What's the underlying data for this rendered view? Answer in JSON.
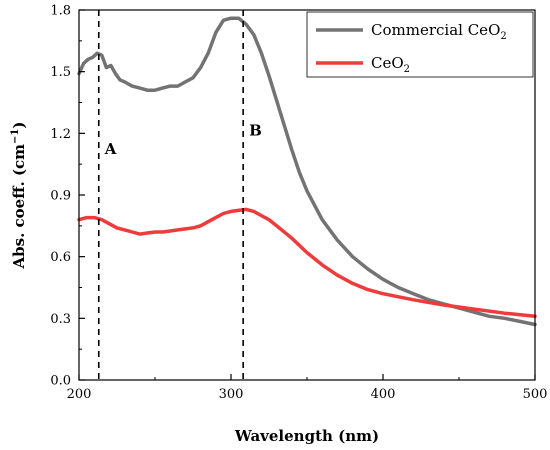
{
  "chart_data": {
    "type": "line",
    "xlabel": "Wavelength (nm)",
    "ylabel_main": "Abs. coeff. (cm",
    "ylabel_sup": "−1",
    "ylabel_close": ")",
    "xlim": [
      200,
      500
    ],
    "ylim": [
      0,
      1.8
    ],
    "x_ticks": [
      "200",
      "300",
      "400",
      "500"
    ],
    "y_ticks": [
      "0.0",
      "0.3",
      "0.6",
      "0.9",
      "1.2",
      "1.5",
      "1.8"
    ],
    "grid": false,
    "legend_position": "top-right",
    "series": [
      {
        "name": "Commercial CeO",
        "name_sub": "2",
        "color": "#737373",
        "x": [
          200,
          203,
          206,
          209,
          212,
          215,
          218,
          221,
          224,
          227,
          230,
          235,
          240,
          245,
          250,
          255,
          260,
          265,
          270,
          275,
          280,
          285,
          290,
          295,
          300,
          305,
          310,
          315,
          320,
          325,
          330,
          335,
          340,
          345,
          350,
          360,
          370,
          380,
          390,
          400,
          410,
          420,
          430,
          440,
          450,
          460,
          470,
          480,
          490,
          500
        ],
        "y": [
          1.49,
          1.54,
          1.56,
          1.57,
          1.59,
          1.58,
          1.52,
          1.53,
          1.49,
          1.46,
          1.45,
          1.43,
          1.42,
          1.41,
          1.41,
          1.42,
          1.43,
          1.43,
          1.45,
          1.47,
          1.52,
          1.59,
          1.69,
          1.75,
          1.76,
          1.76,
          1.73,
          1.68,
          1.59,
          1.48,
          1.36,
          1.24,
          1.12,
          1.01,
          0.92,
          0.78,
          0.68,
          0.6,
          0.54,
          0.49,
          0.45,
          0.42,
          0.39,
          0.37,
          0.35,
          0.33,
          0.31,
          0.3,
          0.285,
          0.27
        ]
      },
      {
        "name": "CeO",
        "name_sub": "2",
        "color": "#ee3b3b",
        "x": [
          200,
          205,
          210,
          215,
          220,
          225,
          230,
          235,
          240,
          245,
          250,
          255,
          260,
          265,
          270,
          275,
          280,
          285,
          290,
          295,
          300,
          305,
          310,
          315,
          320,
          325,
          330,
          340,
          350,
          360,
          370,
          380,
          390,
          400,
          420,
          440,
          460,
          480,
          500
        ],
        "y": [
          0.78,
          0.79,
          0.79,
          0.78,
          0.76,
          0.74,
          0.73,
          0.72,
          0.71,
          0.715,
          0.72,
          0.72,
          0.725,
          0.73,
          0.735,
          0.74,
          0.75,
          0.77,
          0.79,
          0.81,
          0.82,
          0.825,
          0.83,
          0.82,
          0.8,
          0.78,
          0.75,
          0.69,
          0.62,
          0.56,
          0.51,
          0.47,
          0.44,
          0.42,
          0.39,
          0.365,
          0.345,
          0.325,
          0.31
        ]
      }
    ],
    "vlines": [
      {
        "x": 213,
        "label": "A",
        "label_y": 1.1
      },
      {
        "x": 308,
        "label": "B",
        "label_y": 1.19
      }
    ]
  }
}
